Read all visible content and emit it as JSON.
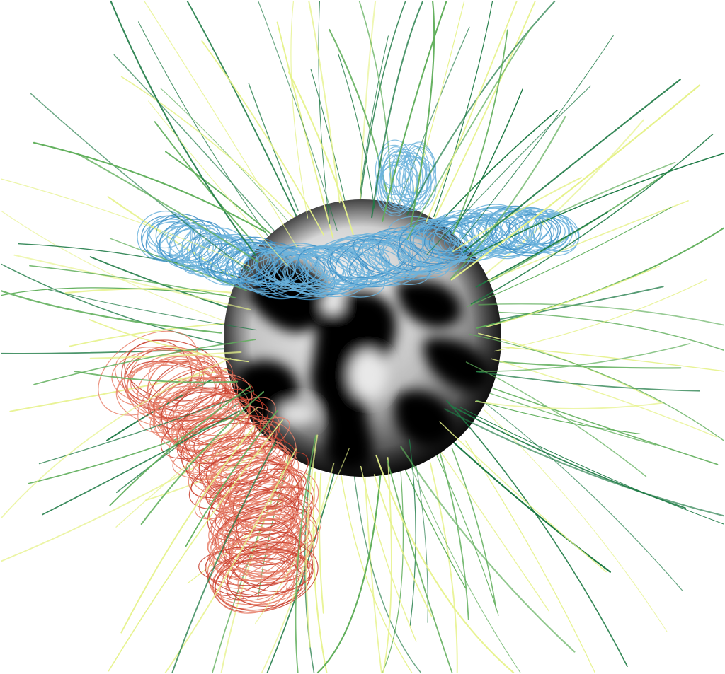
{
  "scene": {
    "subject": "sphere-with-field-lines",
    "background_color": "#ffffff",
    "colors": {
      "open_field_dark": "#1e7a45",
      "open_field_mid": "#5fae5a",
      "open_field_light": "#e6f28a",
      "flux_rope_blue": "#6cb3dc",
      "flux_rope_blue_dark": "#3d8fc6",
      "flux_rope_red": "#e8806a",
      "flux_rope_red_dark": "#c8402e",
      "surface_dark": "#000000",
      "surface_light": "#f2f2f2"
    },
    "icons": [
      "sphere-icon",
      "open-field-lines-icon",
      "blue-flux-rope-icon",
      "red-flux-rope-icon"
    ]
  }
}
